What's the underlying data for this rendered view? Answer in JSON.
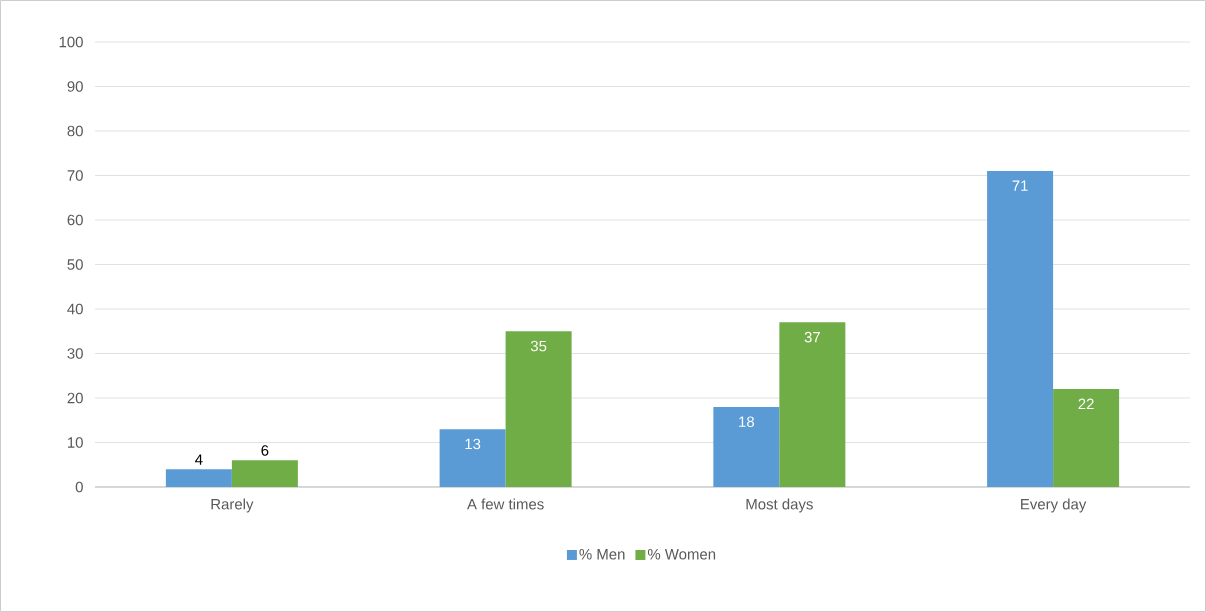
{
  "chart_data": {
    "type": "bar",
    "categories": [
      "Rarely",
      "A few times",
      "Most days",
      "Every day"
    ],
    "series": [
      {
        "name": "% Men",
        "color": "#5b9bd5",
        "values": [
          4,
          13,
          18,
          71
        ]
      },
      {
        "name": "% Women",
        "color": "#70ad47",
        "values": [
          6,
          35,
          37,
          22
        ]
      }
    ],
    "ylim": [
      0,
      100
    ],
    "yticks": [
      0,
      10,
      20,
      30,
      40,
      50,
      60,
      70,
      80,
      90,
      100
    ],
    "grid": "y",
    "legend": "bottom",
    "data_labels": true
  }
}
